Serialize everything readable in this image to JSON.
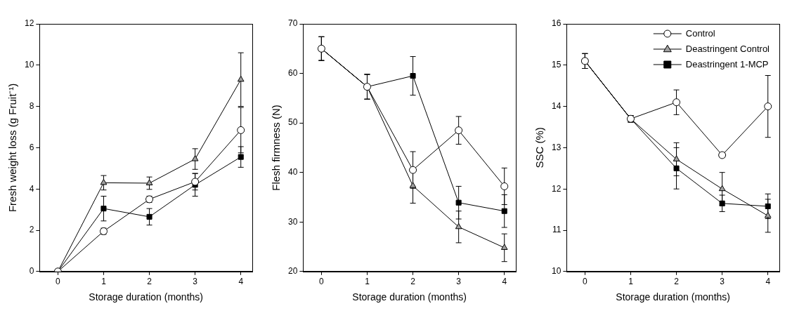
{
  "chart_data": [
    {
      "type": "line",
      "x_label": "Storage duration (months)",
      "y_label": "Fresh weight loss (g Fruit⁻¹)",
      "x": [
        0,
        1,
        2,
        3,
        4
      ],
      "xlim": [
        -0.4,
        4.25
      ],
      "xticks": [
        0,
        1,
        2,
        3,
        4
      ],
      "ylim": [
        0,
        12
      ],
      "yticks": [
        0,
        2,
        4,
        6,
        8,
        10,
        12
      ],
      "grid": false,
      "series": [
        {
          "name": "Control",
          "color": "#ffffff",
          "marker": "circle",
          "line_style": "solid",
          "values": [
            0,
            1.95,
            3.5,
            4.35,
            6.85
          ],
          "errors": [
            0,
            0.15,
            0.15,
            0.4,
            1.1
          ]
        },
        {
          "name": "Deastringent Control",
          "color": "#a0a0a0",
          "marker": "triangle",
          "line_style": "solid",
          "values": [
            0,
            4.3,
            4.28,
            5.45,
            9.3
          ],
          "errors": [
            0,
            0.35,
            0.3,
            0.5,
            1.3
          ]
        },
        {
          "name": "Deastringent 1-MCP",
          "color": "#000000",
          "marker": "square",
          "line_style": "solid",
          "values": [
            0,
            3.05,
            2.65,
            4.2,
            5.55
          ],
          "errors": [
            0,
            0.6,
            0.4,
            0.55,
            0.5
          ]
        }
      ]
    },
    {
      "type": "line",
      "x_label": "Storage duration (months)",
      "y_label": "Flesh firmness (N)",
      "x": [
        0,
        1,
        2,
        3,
        4
      ],
      "xlim": [
        -0.4,
        4.25
      ],
      "xticks": [
        0,
        1,
        2,
        3,
        4
      ],
      "ylim": [
        20,
        70
      ],
      "yticks": [
        20,
        30,
        40,
        50,
        60,
        70
      ],
      "grid": false,
      "series": [
        {
          "name": "Control",
          "color": "#ffffff",
          "marker": "circle",
          "line_style": "solid",
          "values": [
            65,
            57.3,
            40.5,
            48.5,
            37.2
          ],
          "errors": [
            2.4,
            2.5,
            3.7,
            2.8,
            3.7
          ]
        },
        {
          "name": "Deastringent Control",
          "color": "#a0a0a0",
          "marker": "triangle",
          "line_style": "solid",
          "values": [
            65,
            57.3,
            37.3,
            29,
            24.8
          ],
          "errors": [
            2.4,
            2.5,
            3.5,
            3.2,
            2.8
          ]
        },
        {
          "name": "Deastringent 1-MCP",
          "color": "#000000",
          "marker": "square",
          "line_style": "solid",
          "values": [
            65,
            57.3,
            59.5,
            33.9,
            32.2
          ],
          "errors": [
            2.4,
            2.5,
            3.9,
            3.3,
            3.3
          ]
        }
      ]
    },
    {
      "type": "line",
      "x_label": "Storage duration (months)",
      "y_label": "SSC (%)",
      "x": [
        0,
        1,
        2,
        3,
        4
      ],
      "xlim": [
        -0.4,
        4.25
      ],
      "xticks": [
        0,
        1,
        2,
        3,
        4
      ],
      "ylim": [
        10,
        16
      ],
      "yticks": [
        10,
        11,
        12,
        13,
        14,
        15,
        16
      ],
      "grid": false,
      "legend": "top-right",
      "series": [
        {
          "name": "Control",
          "color": "#ffffff",
          "marker": "circle",
          "line_style": "solid",
          "values": [
            15.1,
            13.7,
            14.1,
            12.82,
            14.0
          ],
          "errors": [
            0.18,
            0.08,
            0.3,
            0.05,
            0.75
          ]
        },
        {
          "name": "Deastringent Control",
          "color": "#a0a0a0",
          "marker": "triangle",
          "line_style": "solid",
          "values": [
            15.1,
            13.7,
            12.72,
            12.0,
            11.35
          ],
          "errors": [
            0.18,
            0.08,
            0.4,
            0.4,
            0.4
          ]
        },
        {
          "name": "Deastringent 1-MCP",
          "color": "#000000",
          "marker": "square",
          "line_style": "solid",
          "values": [
            15.1,
            13.7,
            12.5,
            11.65,
            11.58
          ],
          "errors": [
            0.18,
            0.08,
            0.5,
            0.2,
            0.3
          ]
        }
      ]
    }
  ]
}
